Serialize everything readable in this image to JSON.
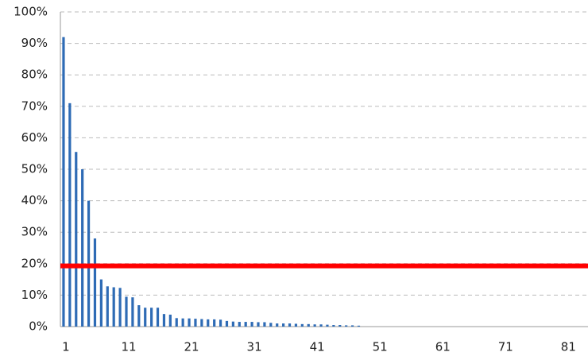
{
  "chart_data": {
    "type": "bar",
    "categories": [
      "1",
      null,
      null,
      null,
      null,
      null,
      null,
      null,
      null,
      null,
      "11",
      null,
      null,
      null,
      null,
      null,
      null,
      null,
      null,
      null,
      "21",
      null,
      null,
      null,
      null,
      null,
      null,
      null,
      null,
      null,
      "31",
      null,
      null,
      null,
      null,
      null,
      null,
      null,
      null,
      null,
      "41",
      null,
      null,
      null,
      null,
      null,
      null,
      null,
      null,
      null,
      "51",
      null,
      null,
      null,
      null,
      null,
      null,
      null,
      null,
      null,
      "61",
      null,
      null,
      null,
      null,
      null,
      null,
      null,
      null,
      null,
      "71",
      null,
      null,
      null,
      null,
      null,
      null,
      null,
      null,
      null,
      "81",
      null,
      null,
      null
    ],
    "values": [
      92,
      71,
      55.5,
      50,
      40,
      28,
      15,
      12.8,
      12.5,
      12.3,
      9.5,
      9.3,
      6.8,
      6,
      6,
      6,
      4,
      3.8,
      2.7,
      2.6,
      2.6,
      2.5,
      2.4,
      2.3,
      2.3,
      2.2,
      1.8,
      1.6,
      1.5,
      1.5,
      1.5,
      1.4,
      1.4,
      1.2,
      1,
      1,
      1,
      0.9,
      0.8,
      0.8,
      0.7,
      0.7,
      0.6,
      0.5,
      0.5,
      0.4,
      0.4,
      0.3,
      0,
      0,
      0,
      0,
      0,
      0,
      0,
      0,
      0,
      0,
      0,
      0,
      0,
      0,
      0,
      0,
      0,
      0,
      0,
      0,
      0,
      0,
      0,
      0,
      0,
      0,
      0,
      0,
      0,
      0,
      0,
      0,
      0,
      0,
      0,
      0
    ],
    "color": "#2e6bb5",
    "reference_line": {
      "value": 19.3,
      "color": "#ff0000"
    },
    "ylim": [
      0,
      100
    ],
    "yticks": [
      {
        "value": 0,
        "label": "0%"
      },
      {
        "value": 10,
        "label": "10%"
      },
      {
        "value": 20,
        "label": "20%"
      },
      {
        "value": 30,
        "label": "30%"
      },
      {
        "value": 40,
        "label": "40%"
      },
      {
        "value": 50,
        "label": "50%"
      },
      {
        "value": 60,
        "label": "60%"
      },
      {
        "value": 70,
        "label": "70%"
      },
      {
        "value": 80,
        "label": "80%"
      },
      {
        "value": 90,
        "label": "90%"
      },
      {
        "value": 100,
        "label": "100%"
      }
    ],
    "grid": true
  }
}
